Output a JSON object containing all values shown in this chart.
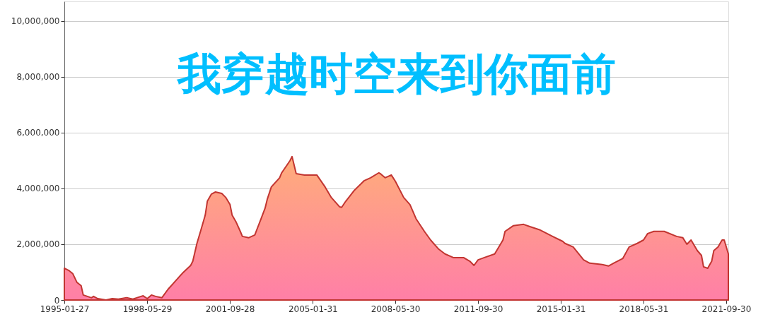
{
  "chart_data": {
    "type": "area",
    "title": "我穿越时空来到你面前",
    "x": [
      "1995-01-27",
      "1995-04",
      "1995-06",
      "1995-08",
      "1995-10",
      "1995-11",
      "1996-03",
      "1996-04",
      "1996-06",
      "1996-10",
      "1997-01",
      "1997-04",
      "1997-08",
      "1997-11",
      "1998-03",
      "1998-04",
      "1998-06",
      "1998-08",
      "1998-10",
      "1999-01",
      "1999-04",
      "1999-08",
      "1999-11",
      "2000-03",
      "2000-04",
      "2000-06",
      "2000-08",
      "2000-10",
      "2000-11",
      "2001-01",
      "2001-03",
      "2001-06",
      "2001-08",
      "2001-10",
      "2001-11",
      "2002-01",
      "2002-03",
      "2002-04",
      "2002-07",
      "2002-10",
      "2002-11",
      "2003-01",
      "2003-03",
      "2003-04",
      "2003-06",
      "2003-10",
      "2003-11",
      "2004-03",
      "2004-04",
      "2004-06",
      "2004-10",
      "2005-01",
      "2005-04",
      "2005-08",
      "2005-11",
      "2006-03",
      "2006-04",
      "2006-06",
      "2006-10",
      "2007-03",
      "2007-06",
      "2007-10",
      "2007-11",
      "2008-01",
      "2008-04",
      "2008-06",
      "2008-10",
      "2009-01",
      "2009-04",
      "2009-08",
      "2009-11",
      "2010-03",
      "2010-06",
      "2010-10",
      "2011-03",
      "2011-06",
      "2011-08",
      "2011-10",
      "2012-01",
      "2012-06",
      "2012-10",
      "2012-11",
      "2013-03",
      "2013-08",
      "2013-11",
      "2014-04",
      "2014-10",
      "2015-03",
      "2015-04",
      "2015-08",
      "2016-01",
      "2016-04",
      "2016-10",
      "2017-01",
      "2017-04",
      "2017-08",
      "2017-11",
      "2018-03",
      "2018-06",
      "2018-08",
      "2018-11",
      "2019-04",
      "2019-10",
      "2020-01",
      "2020-03",
      "2020-05",
      "2020-08",
      "2020-10",
      "2020-11",
      "2021-01",
      "2021-03",
      "2021-04",
      "2021-06",
      "2021-08",
      "2021-09",
      "2021-11"
    ],
    "series": [
      {
        "color": "#c23531",
        "values": [
          1140000,
          1060000,
          940000,
          630000,
          510000,
          180000,
          80000,
          130000,
          50000,
          0,
          50000,
          30000,
          80000,
          30000,
          130000,
          150000,
          50000,
          180000,
          130000,
          80000,
          380000,
          710000,
          960000,
          1240000,
          1390000,
          2030000,
          2530000,
          3040000,
          3540000,
          3800000,
          3870000,
          3820000,
          3670000,
          3420000,
          3040000,
          2780000,
          2460000,
          2280000,
          2230000,
          2330000,
          2530000,
          2910000,
          3290000,
          3600000,
          4050000,
          4380000,
          4560000,
          4990000,
          5140000,
          4530000,
          4480000,
          4480000,
          4480000,
          4050000,
          3670000,
          3340000,
          3320000,
          3540000,
          3920000,
          4280000,
          4380000,
          4560000,
          4510000,
          4380000,
          4480000,
          4250000,
          3670000,
          3420000,
          2910000,
          2460000,
          2150000,
          1820000,
          1650000,
          1520000,
          1520000,
          1390000,
          1240000,
          1440000,
          1520000,
          1650000,
          2150000,
          2460000,
          2660000,
          2710000,
          2630000,
          2510000,
          2280000,
          2100000,
          2030000,
          1900000,
          1440000,
          1320000,
          1270000,
          1220000,
          1340000,
          1490000,
          1900000,
          2030000,
          2150000,
          2380000,
          2460000,
          2460000,
          2280000,
          2230000,
          2000000,
          2150000,
          1770000,
          1600000,
          1190000,
          1140000,
          1390000,
          1770000,
          1900000,
          2150000,
          2150000,
          1650000
        ]
      }
    ],
    "xlim": [
      "1995-01-27",
      "2021-11"
    ],
    "xticks": [
      {
        "value": "1995-01-27",
        "label": "1995-01-27"
      },
      {
        "value": "1998-05-29",
        "label": "1998-05-29"
      },
      {
        "value": "2001-09-28",
        "label": "2001-09-28"
      },
      {
        "value": "2005-01-31",
        "label": "2005-01-31"
      },
      {
        "value": "2008-05-30",
        "label": "2008-05-30"
      },
      {
        "value": "2011-09-30",
        "label": "2011-09-30"
      },
      {
        "value": "2015-01-31",
        "label": "2015-01-31"
      },
      {
        "value": "2018-05-31",
        "label": "2018-05-31"
      },
      {
        "value": "2021-09-30",
        "label": "2021-09-30"
      }
    ],
    "ylim": [
      0,
      10700000
    ],
    "yticks": [
      {
        "value": 0,
        "label": "0"
      },
      {
        "value": 2000000,
        "label": "2,000,000"
      },
      {
        "value": 4000000,
        "label": "4,000,000"
      },
      {
        "value": 6000000,
        "label": "6,000,000"
      },
      {
        "value": 8000000,
        "label": "8,000,000"
      },
      {
        "value": 10000000,
        "label": "10,000,000"
      }
    ],
    "grid": "y"
  }
}
